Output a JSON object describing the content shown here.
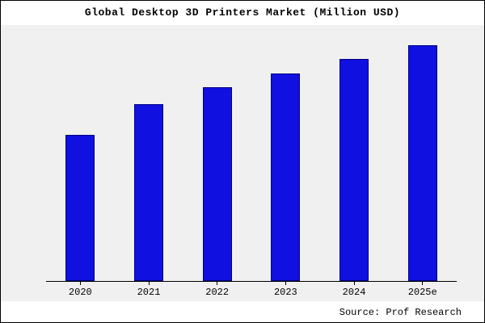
{
  "title": "Global Desktop 3D Printers Market (Million USD)",
  "source": "Source: Prof Research",
  "colors": {
    "bar_fill": "#1010e0",
    "bar_border": "#000080",
    "plot_bg": "#f0f0f0",
    "page_bg": "#ffffff",
    "axis": "#000000"
  },
  "chart_data": {
    "type": "bar",
    "title": "Global Desktop 3D Printers Market (Million USD)",
    "categories": [
      "2020",
      "2021",
      "2022",
      "2023",
      "2024",
      "2025e"
    ],
    "values": [
      62,
      75,
      82,
      88,
      94,
      100
    ],
    "xlabel": "",
    "ylabel": "",
    "ylim": [
      0,
      105
    ],
    "y_tick_labels_visible": false,
    "grid": false,
    "legend": false
  }
}
